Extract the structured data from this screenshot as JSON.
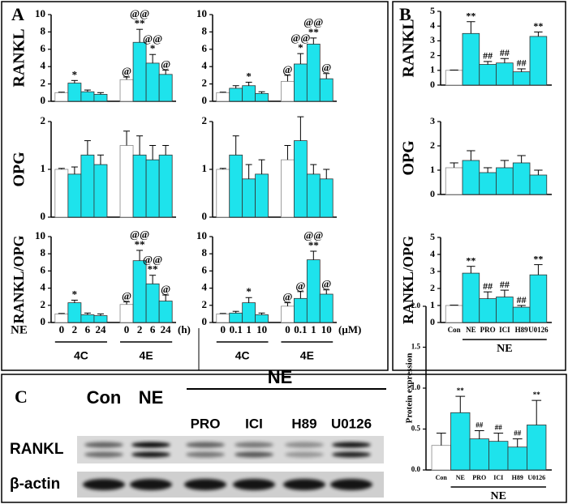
{
  "figure": {
    "panel_labels": [
      "A",
      "B",
      "C"
    ]
  },
  "blot": {
    "group_label": "NE",
    "lanes": [
      "Con",
      "NE",
      "PRO",
      "ICI",
      "H89",
      "U0126"
    ],
    "rows": [
      "RANKL",
      "β-actin"
    ]
  },
  "chart_data": [
    {
      "type": "bar",
      "ylabel": "RANKL",
      "ylim": [
        0,
        10
      ],
      "yticks": [
        0,
        2,
        4,
        6,
        8,
        10
      ],
      "values": [
        1.0,
        2.1,
        1.1,
        0.8,
        2.5,
        6.8,
        4.4,
        3.1
      ],
      "errors": [
        0.05,
        0.3,
        0.2,
        0.2,
        0.3,
        1.5,
        1.0,
        0.5
      ],
      "colors": [
        "#ffffff",
        "#1ee3ec",
        "#1ee3ec",
        "#1ee3ec",
        "#ffffff",
        "#1ee3ec",
        "#1ee3ec",
        "#1ee3ec"
      ],
      "annotations": [
        [],
        [
          "*"
        ],
        [],
        [],
        [
          "@"
        ],
        [
          "@@",
          "**"
        ],
        [
          "@@",
          "*"
        ],
        [
          "@"
        ]
      ]
    },
    {
      "type": "bar",
      "ylim": [
        0,
        10
      ],
      "yticks": [
        0,
        2,
        4,
        6,
        8,
        10
      ],
      "values": [
        1.0,
        1.5,
        1.8,
        0.9,
        2.3,
        4.3,
        6.6,
        2.6
      ],
      "errors": [
        0.05,
        0.3,
        0.4,
        0.2,
        0.7,
        1.2,
        0.7,
        0.6
      ],
      "colors": [
        "#ffffff",
        "#1ee3ec",
        "#1ee3ec",
        "#1ee3ec",
        "#ffffff",
        "#1ee3ec",
        "#1ee3ec",
        "#1ee3ec"
      ],
      "annotations": [
        [],
        [],
        [
          "*"
        ],
        [],
        [
          "@"
        ],
        [
          "@@",
          "*"
        ],
        [
          "@@",
          "**"
        ],
        [
          "@"
        ]
      ]
    },
    {
      "type": "bar",
      "ylabel": "OPG",
      "ylim": [
        0,
        2
      ],
      "yticks": [
        0,
        1,
        2
      ],
      "values": [
        1.0,
        0.9,
        1.3,
        1.1,
        1.5,
        1.3,
        1.2,
        1.3
      ],
      "errors": [
        0.02,
        0.15,
        0.3,
        0.2,
        0.3,
        0.4,
        0.3,
        0.2
      ],
      "colors": [
        "#ffffff",
        "#1ee3ec",
        "#1ee3ec",
        "#1ee3ec",
        "#ffffff",
        "#1ee3ec",
        "#1ee3ec",
        "#1ee3ec"
      ],
      "annotations": [
        [],
        [],
        [],
        [],
        [],
        [],
        [],
        []
      ]
    },
    {
      "type": "bar",
      "ylim": [
        0,
        2
      ],
      "yticks": [
        0,
        1,
        2
      ],
      "values": [
        1.0,
        1.3,
        0.8,
        0.9,
        1.2,
        1.6,
        0.9,
        0.8
      ],
      "errors": [
        0.02,
        0.4,
        0.3,
        0.3,
        0.3,
        0.5,
        0.2,
        0.2
      ],
      "colors": [
        "#ffffff",
        "#1ee3ec",
        "#1ee3ec",
        "#1ee3ec",
        "#ffffff",
        "#1ee3ec",
        "#1ee3ec",
        "#1ee3ec"
      ],
      "annotations": [
        [],
        [],
        [],
        [],
        [],
        [],
        [],
        []
      ]
    },
    {
      "type": "bar",
      "ylabel": "RANKL/OPG",
      "ylim": [
        0,
        10
      ],
      "yticks": [
        0,
        2,
        4,
        6,
        8,
        10
      ],
      "values": [
        1.0,
        2.3,
        0.9,
        0.8,
        2.1,
        7.2,
        4.5,
        2.5
      ],
      "errors": [
        0.05,
        0.3,
        0.2,
        0.2,
        0.3,
        1.2,
        1.0,
        0.7
      ],
      "colors": [
        "#ffffff",
        "#1ee3ec",
        "#1ee3ec",
        "#1ee3ec",
        "#ffffff",
        "#1ee3ec",
        "#1ee3ec",
        "#1ee3ec"
      ],
      "annotations": [
        [],
        [
          "*"
        ],
        [],
        [],
        [
          "@"
        ],
        [
          "@@",
          "**"
        ],
        [
          "@@",
          "**"
        ],
        [
          "@"
        ]
      ],
      "x_label": "NE",
      "categories": [
        "0",
        "2",
        "6",
        "24",
        "0",
        "2",
        "6",
        "24"
      ],
      "x_unit": "(h)",
      "groups": [
        "4C",
        "4E"
      ]
    },
    {
      "type": "bar",
      "ylim": [
        0,
        10
      ],
      "yticks": [
        0,
        2,
        4,
        6,
        8,
        10
      ],
      "values": [
        1.0,
        1.1,
        2.3,
        0.9,
        1.9,
        2.8,
        7.3,
        3.3
      ],
      "errors": [
        0.05,
        0.2,
        0.6,
        0.2,
        0.4,
        0.8,
        1.0,
        0.5
      ],
      "colors": [
        "#ffffff",
        "#1ee3ec",
        "#1ee3ec",
        "#1ee3ec",
        "#ffffff",
        "#1ee3ec",
        "#1ee3ec",
        "#1ee3ec"
      ],
      "annotations": [
        [],
        [],
        [
          "*"
        ],
        [],
        [
          "@"
        ],
        [
          "@"
        ],
        [
          "@@",
          "**"
        ],
        [
          "@"
        ]
      ],
      "categories": [
        "0",
        "0.1",
        "1",
        "10",
        "0",
        "0.1",
        "1",
        "10"
      ],
      "x_unit": "(μM)",
      "groups": [
        "4C",
        "4E"
      ]
    },
    {
      "type": "bar",
      "ylabel": "RANKL",
      "ylim": [
        0,
        5
      ],
      "yticks": [
        0,
        1,
        2,
        3,
        4,
        5
      ],
      "values": [
        1.0,
        3.5,
        1.4,
        1.5,
        0.9,
        3.3
      ],
      "errors": [
        0.02,
        0.8,
        0.2,
        0.3,
        0.2,
        0.3
      ],
      "colors": [
        "#ffffff",
        "#1ee3ec",
        "#1ee3ec",
        "#1ee3ec",
        "#1ee3ec",
        "#1ee3ec"
      ],
      "annotations": [
        [],
        [
          "**"
        ],
        [
          "##"
        ],
        [
          "##"
        ],
        [
          "##"
        ],
        [
          "**"
        ]
      ]
    },
    {
      "type": "bar",
      "ylabel": "OPG",
      "ylim": [
        0,
        3
      ],
      "yticks": [
        0,
        1,
        2,
        3
      ],
      "values": [
        1.1,
        1.4,
        0.9,
        1.1,
        1.3,
        0.8
      ],
      "errors": [
        0.2,
        0.4,
        0.2,
        0.3,
        0.3,
        0.2
      ],
      "colors": [
        "#ffffff",
        "#1ee3ec",
        "#1ee3ec",
        "#1ee3ec",
        "#1ee3ec",
        "#1ee3ec"
      ],
      "annotations": [
        [],
        [],
        [],
        [],
        [],
        []
      ]
    },
    {
      "type": "bar",
      "ylabel": "RANKL/OPG",
      "ylim": [
        0,
        5
      ],
      "yticks": [
        0,
        1,
        2,
        3,
        4,
        5
      ],
      "values": [
        1.0,
        2.9,
        1.4,
        1.5,
        0.9,
        2.8
      ],
      "errors": [
        0.02,
        0.4,
        0.4,
        0.4,
        0.1,
        0.6
      ],
      "colors": [
        "#ffffff",
        "#1ee3ec",
        "#1ee3ec",
        "#1ee3ec",
        "#1ee3ec",
        "#1ee3ec"
      ],
      "annotations": [
        [],
        [
          "**"
        ],
        [
          "##"
        ],
        [
          "##"
        ],
        [
          "##"
        ],
        [
          "**"
        ]
      ],
      "categories": [
        "Con",
        "NE",
        "PRO",
        "ICI",
        "H89",
        "U0126"
      ],
      "groups": [
        "NE"
      ]
    },
    {
      "type": "bar",
      "ylabel": "Protein expression",
      "ylim": [
        0,
        2
      ],
      "yticks": [
        {
          "value": 0,
          "label": "0.0"
        },
        {
          "value": 0.5,
          "label": "0.5"
        },
        {
          "value": 1,
          "label": "1.0"
        },
        {
          "value": 1.5,
          "label": "1.5"
        },
        {
          "value": 2,
          "label": "2.0"
        }
      ],
      "values": [
        0.3,
        0.7,
        0.38,
        0.35,
        0.28,
        0.55
      ],
      "errors": [
        0.15,
        0.2,
        0.1,
        0.1,
        0.1,
        0.3
      ],
      "colors": [
        "#ffffff",
        "#1ee3ec",
        "#1ee3ec",
        "#1ee3ec",
        "#1ee3ec",
        "#1ee3ec"
      ],
      "annotations": [
        [],
        [
          "**"
        ],
        [
          "##"
        ],
        [
          "##"
        ],
        [
          "##"
        ],
        [
          "**"
        ]
      ],
      "categories": [
        "Con",
        "NE",
        "PRO",
        "ICI",
        "H89",
        "U0126"
      ],
      "groups": [
        "NE"
      ]
    }
  ]
}
